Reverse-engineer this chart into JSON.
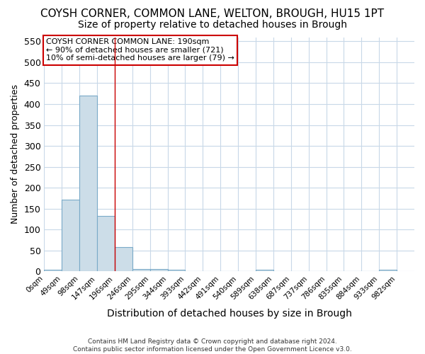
{
  "title": "COYSH CORNER, COMMON LANE, WELTON, BROUGH, HU15 1PT",
  "subtitle": "Size of property relative to detached houses in Brough",
  "xlabel": "Distribution of detached houses by size in Brough",
  "ylabel": "Number of detached properties",
  "bin_edges": [
    0,
    49,
    98,
    147,
    196,
    245,
    294,
    343,
    392,
    441,
    490,
    539,
    588,
    637,
    686,
    735,
    784,
    833,
    882,
    931,
    980
  ],
  "bin_labels": [
    "0sqm",
    "49sqm",
    "98sqm",
    "147sqm",
    "196sqm",
    "246sqm",
    "295sqm",
    "344sqm",
    "393sqm",
    "442sqm",
    "491sqm",
    "540sqm",
    "589sqm",
    "638sqm",
    "687sqm",
    "737sqm",
    "786sqm",
    "835sqm",
    "884sqm",
    "933sqm",
    "982sqm"
  ],
  "bar_heights": [
    3,
    172,
    420,
    132,
    58,
    5,
    6,
    4,
    1,
    1,
    1,
    1,
    4,
    1,
    0,
    0,
    0,
    0,
    0,
    4
  ],
  "bar_color": "#ccdde8",
  "bar_edge_color": "#7aaac8",
  "red_line_x": 196,
  "ylim": [
    0,
    560
  ],
  "yticks": [
    0,
    50,
    100,
    150,
    200,
    250,
    300,
    350,
    400,
    450,
    500,
    550
  ],
  "annotation_text": "COYSH CORNER COMMON LANE: 190sqm\n← 90% of detached houses are smaller (721)\n10% of semi-detached houses are larger (79) →",
  "annotation_box_color": "#ffffff",
  "annotation_box_edge_color": "#cc0000",
  "footer_text": "Contains HM Land Registry data © Crown copyright and database right 2024.\nContains public sector information licensed under the Open Government Licence v3.0.",
  "background_color": "#ffffff",
  "plot_bg_color": "#ffffff",
  "grid_color": "#c8d8e8",
  "title_fontsize": 11,
  "subtitle_fontsize": 10,
  "xlabel_fontsize": 10,
  "ylabel_fontsize": 9
}
